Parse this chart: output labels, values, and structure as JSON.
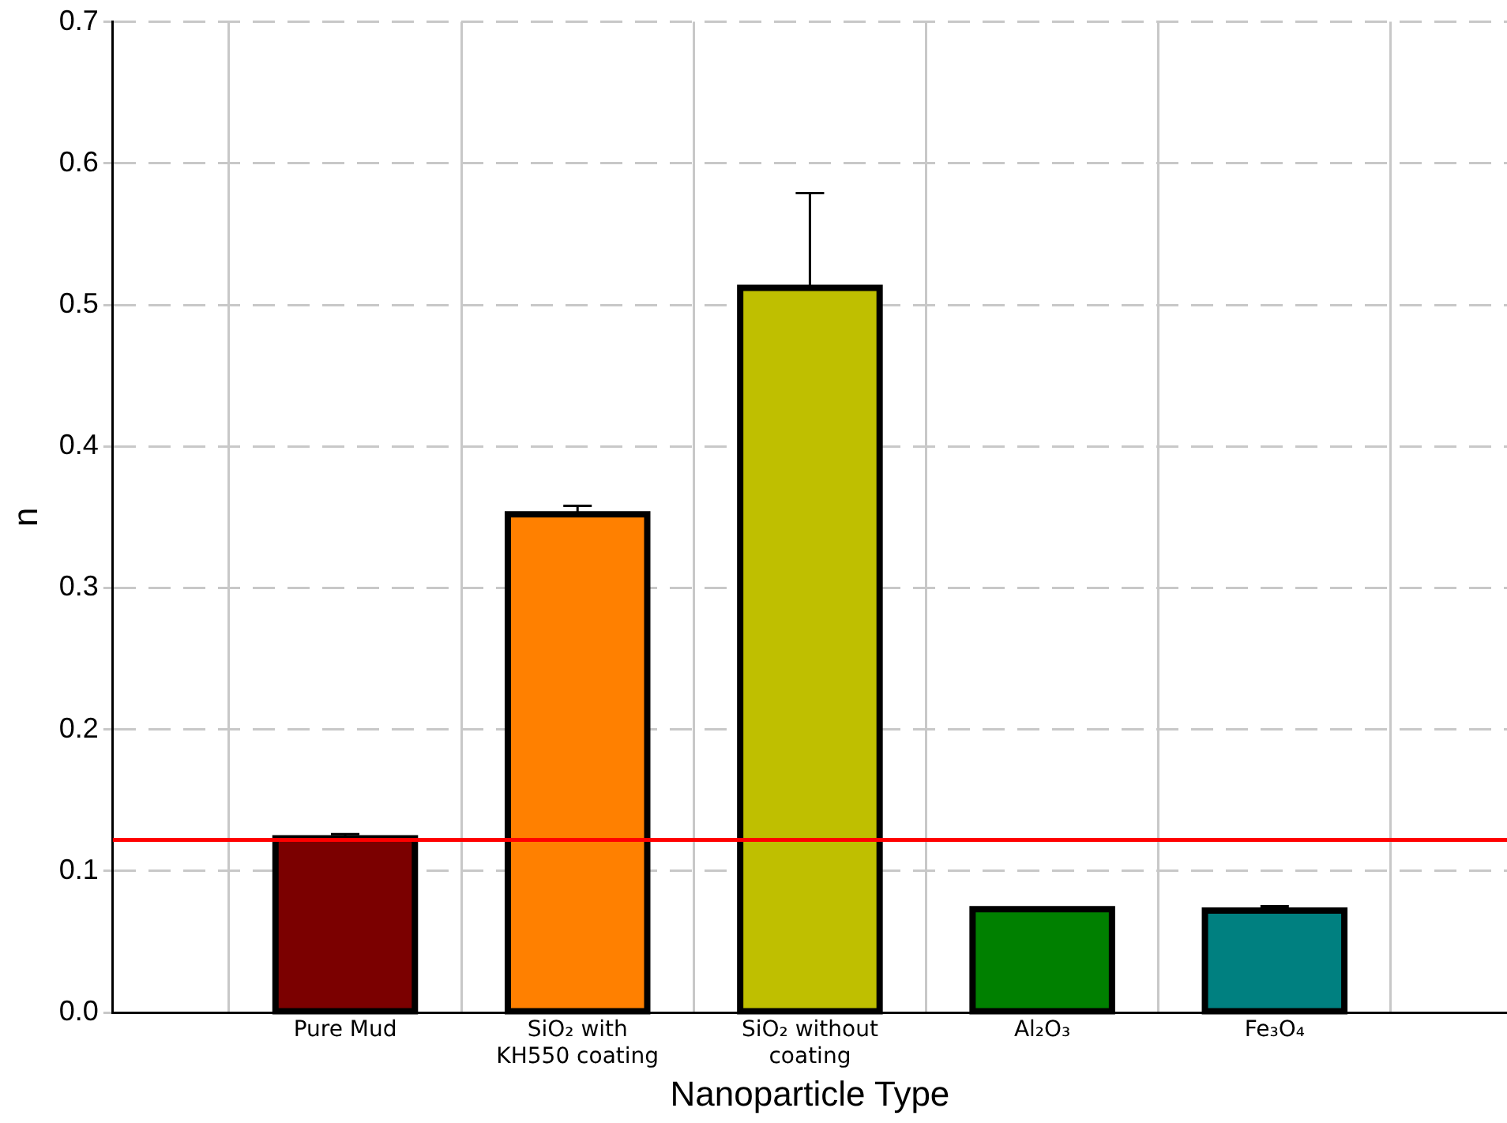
{
  "chart_data": {
    "type": "bar",
    "xlabel": "Nanoparticle Type",
    "ylabel": "n",
    "categories": [
      "Pure Mud",
      "SiO₂ with KH550 coating",
      "SiO₂ without coating",
      "Al₂O₃",
      "Fe₃O₄"
    ],
    "values": [
      0.123,
      0.352,
      0.512,
      0.073,
      0.072
    ],
    "colors": [
      "#7b0000",
      "#ff8000",
      "#bfbf00",
      "#008000",
      "#008080"
    ],
    "errors": [
      0.003,
      0.006,
      0.067,
      null,
      0.003
    ],
    "ylim": [
      0,
      0.7
    ],
    "yticks": [
      {
        "value": 0,
        "label": "0.0"
      },
      0.1,
      0.2,
      0.3,
      0.4,
      0.5,
      0.6,
      0.7
    ],
    "ref_lines": [
      {
        "axis": "y",
        "value": 0.122,
        "color": "#ff0000"
      }
    ],
    "grid": true
  }
}
